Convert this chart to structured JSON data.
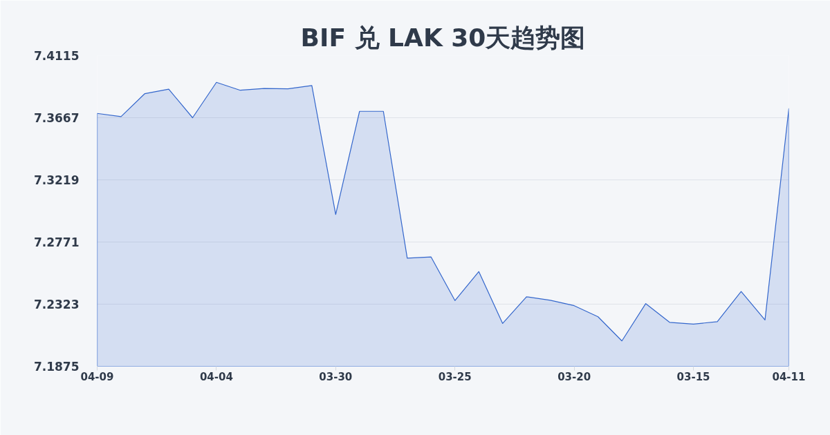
{
  "chart_data": {
    "type": "area",
    "title": "BIF 兑 LAK 30天趋势图",
    "categories": [
      "04-09",
      null,
      null,
      null,
      null,
      "04-04",
      null,
      null,
      null,
      null,
      "03-30",
      null,
      null,
      null,
      null,
      "03-25",
      null,
      null,
      null,
      null,
      "03-20",
      null,
      null,
      null,
      null,
      "03-15",
      null,
      null,
      null,
      "04-11"
    ],
    "series": [
      {
        "color": "#3366cc",
        "values": [
          7.3698,
          7.3675,
          7.3841,
          7.3873,
          7.3667,
          7.3922,
          7.3865,
          7.3878,
          7.3875,
          7.3899,
          7.297,
          7.3713,
          7.3713,
          7.2655,
          7.2663,
          7.2349,
          7.2558,
          7.2184,
          7.2376,
          7.2351,
          7.2312,
          7.2232,
          7.2058,
          7.2327,
          7.2192,
          7.2179,
          7.2197,
          7.2414,
          7.2209,
          7.3733
        ]
      }
    ],
    "ylim": [
      7.1875,
      7.4115
    ],
    "yticks": [
      7.1875,
      7.2323,
      7.2771,
      7.3219,
      7.3667,
      7.4115
    ],
    "grid": "y"
  }
}
